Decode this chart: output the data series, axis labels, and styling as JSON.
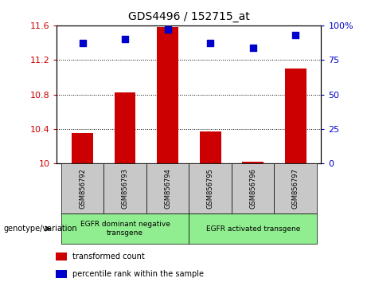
{
  "title": "GDS4496 / 152715_at",
  "samples": [
    "GSM856792",
    "GSM856793",
    "GSM856794",
    "GSM856795",
    "GSM856796",
    "GSM856797"
  ],
  "transformed_counts": [
    10.35,
    10.82,
    11.58,
    10.37,
    10.02,
    11.1
  ],
  "percentile_ranks": [
    87,
    90,
    97,
    87,
    84,
    93
  ],
  "ylim_left": [
    10.0,
    11.6
  ],
  "ylim_right": [
    0,
    100
  ],
  "left_ticks": [
    10,
    10.4,
    10.8,
    11.2,
    11.6
  ],
  "right_ticks": [
    0,
    25,
    50,
    75,
    100
  ],
  "right_tick_labels": [
    "0",
    "25",
    "50",
    "75",
    "100%"
  ],
  "groups": [
    {
      "label": "EGFR dominant negative\ntransgene",
      "indices": [
        0,
        1,
        2
      ],
      "color": "#90EE90"
    },
    {
      "label": "EGFR activated transgene",
      "indices": [
        3,
        4,
        5
      ],
      "color": "#90EE90"
    }
  ],
  "bar_color": "#CC0000",
  "dot_color": "#0000CC",
  "genotype_label": "genotype/variation",
  "legend_items": [
    {
      "color": "#CC0000",
      "label": "transformed count"
    },
    {
      "color": "#0000CC",
      "label": "percentile rank within the sample"
    }
  ],
  "grid_color": "#000000",
  "bar_width": 0.5,
  "dot_size": 35,
  "background_color": "#ffffff",
  "tick_label_color_left": "#CC0000",
  "tick_label_color_right": "#0000CC",
  "gray_color": "#C8C8C8",
  "green_color": "#90EE90"
}
